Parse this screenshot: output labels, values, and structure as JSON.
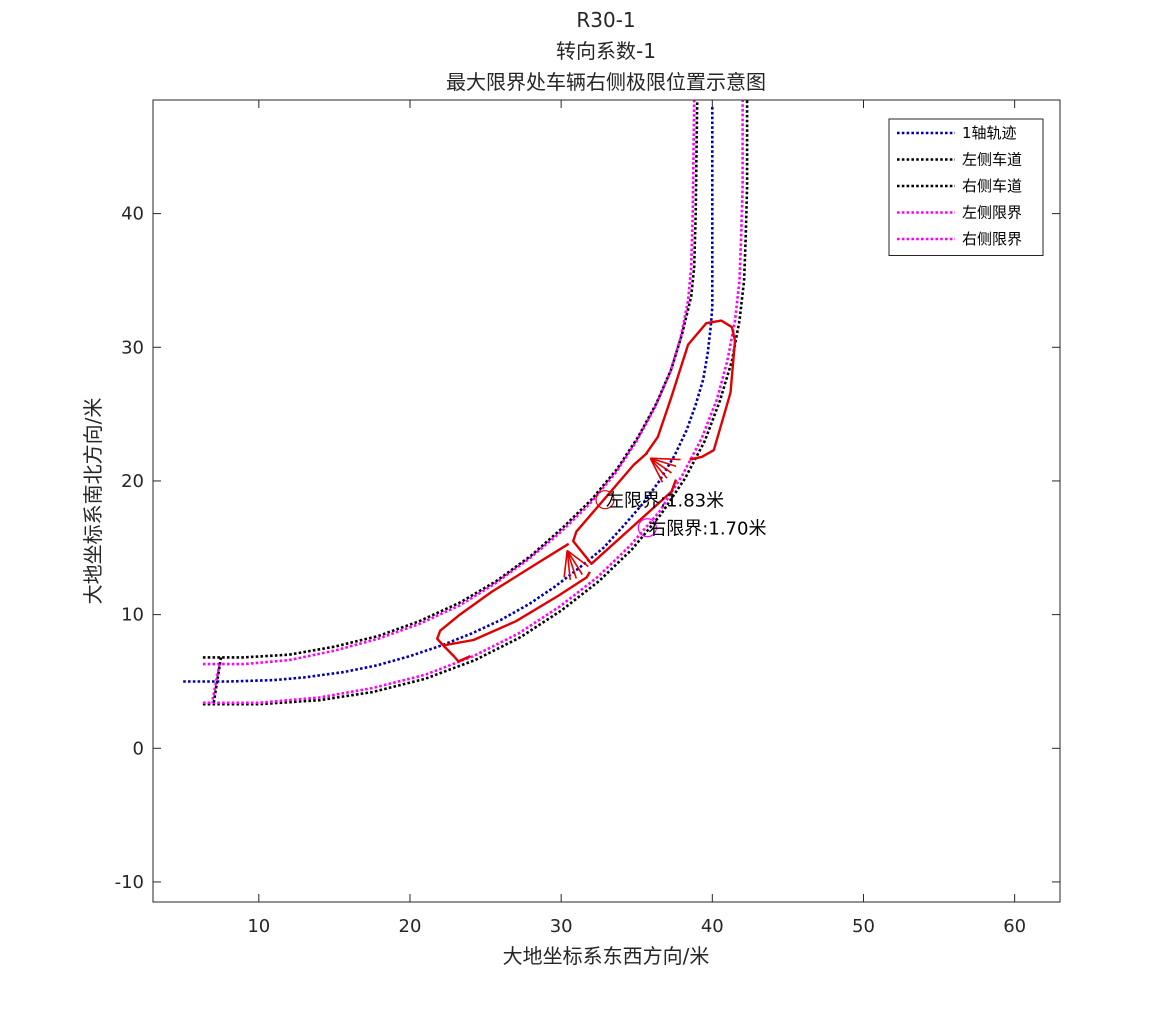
{
  "chart_data": {
    "type": "line",
    "title_lines": [
      "R30-1",
      "转向系数-1",
      "最大限界处车辆右侧极限位置示意图"
    ],
    "xlabel": "大地坐标系东西方向/米",
    "ylabel": "大地坐标系南北方向/米",
    "xlim": [
      3,
      63
    ],
    "ylim": [
      -11.5,
      48.5
    ],
    "xticks": [
      10,
      20,
      30,
      40,
      50,
      60
    ],
    "yticks": [
      -10,
      0,
      10,
      20,
      30,
      40
    ],
    "grid": false,
    "legend_position": "top-right",
    "series": [
      {
        "name": "1轴轨迹",
        "color": "#0000b3",
        "style": "dotted",
        "x": [
          5.0,
          8.0,
          11.0,
          13.0,
          15.6,
          17.8,
          20.0,
          22.1,
          24.1,
          26.0,
          27.9,
          29.6,
          31.2,
          32.8,
          34.1,
          35.4,
          36.5,
          37.5,
          38.3,
          38.9,
          39.4,
          39.7,
          39.9,
          40.0,
          40.0,
          40.0
        ],
        "y": [
          5.0,
          5.0,
          5.1,
          5.3,
          5.7,
          6.2,
          6.9,
          7.7,
          8.6,
          9.6,
          10.8,
          12.1,
          13.5,
          15.0,
          16.6,
          18.3,
          20.0,
          21.9,
          23.8,
          25.7,
          27.6,
          29.6,
          31.6,
          33.0,
          40.0,
          48.0
        ]
      },
      {
        "name": "左侧车道",
        "color": "#000000",
        "style": "dotted",
        "x": [
          6.3,
          9.0,
          12.0,
          15.0,
          17.9,
          20.6,
          23.3,
          25.7,
          28.0,
          30.1,
          32.0,
          33.7,
          35.1,
          36.3,
          37.3,
          38.0,
          38.6,
          38.8,
          38.9,
          39.0
        ],
        "y": [
          6.8,
          6.8,
          7.0,
          7.6,
          8.4,
          9.5,
          10.9,
          12.5,
          14.4,
          16.5,
          18.6,
          20.9,
          23.3,
          25.8,
          28.4,
          31.0,
          33.8,
          36.0,
          40.0,
          48.5
        ]
      },
      {
        "name": "右侧车道",
        "color": "#000000",
        "style": "dotted",
        "x": [
          6.3,
          10.0,
          14.0,
          17.5,
          21.0,
          24.3,
          27.3,
          30.0,
          32.5,
          34.7,
          36.6,
          38.2,
          39.5,
          40.5,
          41.3,
          41.8,
          42.1,
          42.2,
          42.3,
          42.3
        ],
        "y": [
          3.3,
          3.3,
          3.6,
          4.2,
          5.2,
          6.6,
          8.3,
          10.3,
          12.5,
          14.9,
          17.5,
          20.2,
          23.0,
          26.0,
          29.0,
          32.0,
          35.0,
          38.0,
          42.0,
          48.5
        ]
      },
      {
        "name": "左侧限界",
        "color": "#ff00ff",
        "style": "dotted",
        "x": [
          6.3,
          9.0,
          12.0,
          15.0,
          17.9,
          20.6,
          23.3,
          25.6,
          27.9,
          30.0,
          31.9,
          33.6,
          35.0,
          36.2,
          37.2,
          37.9,
          38.4,
          38.6,
          38.7,
          38.8
        ],
        "y": [
          6.3,
          6.3,
          6.6,
          7.3,
          8.2,
          9.3,
          10.7,
          12.3,
          14.2,
          16.2,
          18.3,
          20.6,
          23.0,
          25.5,
          28.1,
          30.7,
          33.5,
          36.0,
          40.0,
          48.5
        ]
      },
      {
        "name": "右侧限界",
        "color": "#ff00ff",
        "style": "dotted",
        "x": [
          6.3,
          10.0,
          14.0,
          17.5,
          21.0,
          24.2,
          27.2,
          29.9,
          32.4,
          34.6,
          36.5,
          38.0,
          39.3,
          40.3,
          41.0,
          41.5,
          41.8,
          41.9,
          42.0,
          42.0
        ],
        "y": [
          3.4,
          3.4,
          3.8,
          4.5,
          5.5,
          6.9,
          8.6,
          10.6,
          12.8,
          15.2,
          17.7,
          20.4,
          23.2,
          26.1,
          29.0,
          32.0,
          35.0,
          38.0,
          42.0,
          48.5
        ]
      }
    ],
    "start_lines": [
      {
        "color": "#000000",
        "x": [
          7.5,
          7.0
        ],
        "y": [
          6.8,
          3.3
        ]
      },
      {
        "color": "#ff00ff",
        "x": [
          7.4,
          6.9
        ],
        "y": [
          6.3,
          3.4
        ]
      }
    ],
    "vehicle": {
      "color": "#e00000",
      "outline_segments": [
        {
          "x": [
            38.5,
            39.3,
            40.1,
            41.2,
            41.5,
            41.3,
            40.6,
            39.6,
            38.4,
            37.3,
            36.4,
            35.6
          ],
          "y": [
            21.6,
            21.8,
            22.3,
            26.6,
            30.5,
            31.5,
            32.0,
            31.8,
            30.2,
            26.3,
            23.3,
            22.0
          ]
        },
        {
          "x": [
            35.7,
            34.8,
            31.0,
            30.8,
            32.0,
            37.3,
            37.6
          ],
          "y": [
            22.1,
            21.2,
            16.2,
            15.5,
            13.8,
            19.2,
            20.1
          ]
        },
        {
          "x": [
            30.5,
            28.5,
            25.4,
            23.3,
            22.0,
            21.8,
            22.2,
            24.2,
            27.0,
            29.8,
            31.7,
            31.9
          ],
          "y": [
            15.3,
            13.9,
            11.7,
            10.0,
            8.8,
            8.2,
            7.7,
            8.1,
            9.5,
            11.4,
            12.8,
            13.2
          ]
        },
        {
          "x": [
            22.2,
            22.9,
            23.2,
            23.4,
            24.0
          ],
          "y": [
            7.7,
            6.9,
            6.5,
            6.6,
            6.9
          ]
        }
      ],
      "fans": [
        {
          "origin": [
            35.9,
            21.7
          ],
          "tips": [
            [
              37.9,
              21.6
            ],
            [
              37.6,
              21.1
            ],
            [
              37.3,
              20.6
            ],
            [
              37.0,
              20.2
            ],
            [
              36.7,
              19.9
            ]
          ]
        },
        {
          "origin": [
            30.4,
            14.8
          ],
          "tips": [
            [
              31.8,
              13.6
            ],
            [
              31.4,
              13.0
            ],
            [
              31.0,
              12.7
            ],
            [
              30.6,
              12.6
            ],
            [
              30.2,
              12.8
            ]
          ]
        }
      ]
    },
    "markers": [
      {
        "x": 32.9,
        "y": 18.6,
        "color": "#e00000"
      },
      {
        "x": 35.7,
        "y": 16.5,
        "color": "#ff00ff"
      }
    ],
    "annotations": [
      {
        "text": "左限界:1.83米",
        "x": 32.9,
        "y": 18.6
      },
      {
        "text": "右限界:1.70米",
        "x": 35.7,
        "y": 16.5
      }
    ]
  }
}
